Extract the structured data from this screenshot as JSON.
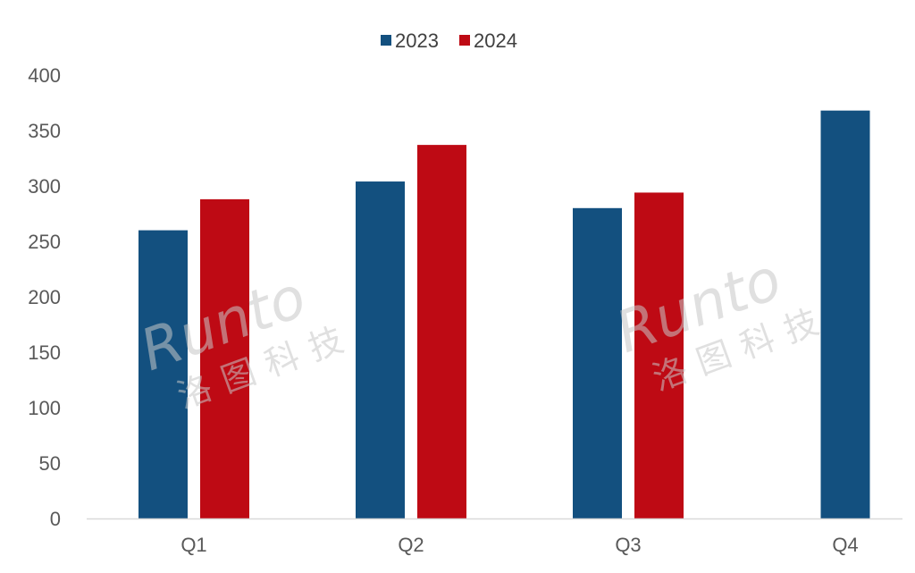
{
  "chart_data": {
    "type": "bar",
    "categories": [
      "Q1",
      "Q2",
      "Q3",
      "Q4"
    ],
    "series": [
      {
        "name": "2023",
        "color": "#13507f",
        "values": [
          260,
          304,
          280,
          368
        ]
      },
      {
        "name": "2024",
        "color": "#be0a14",
        "values": [
          288,
          337,
          294,
          null
        ]
      }
    ],
    "ylim": [
      0,
      400
    ],
    "yticks": [
      0,
      50,
      100,
      150,
      200,
      250,
      300,
      350,
      400
    ],
    "grid": false,
    "legend_position": "top-center",
    "title": "",
    "xlabel": "",
    "ylabel": ""
  },
  "watermark": {
    "logo_text": "Runto",
    "company_name": "洛图科技"
  }
}
